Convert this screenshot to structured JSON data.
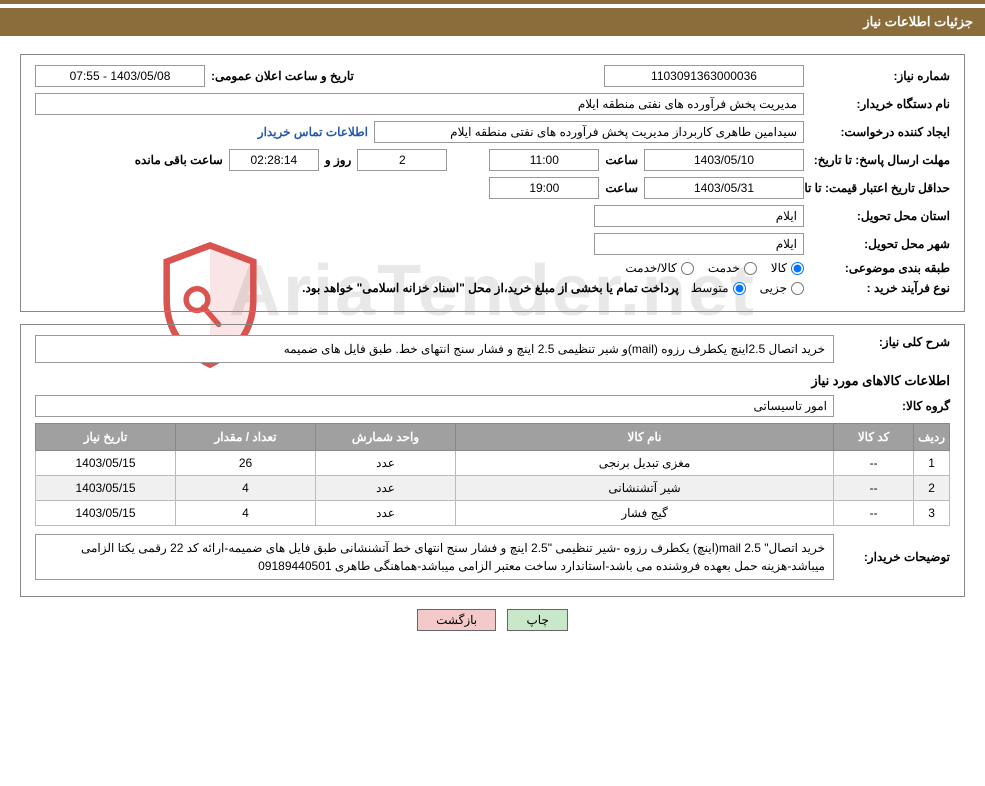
{
  "header": {
    "title": "جزئیات اطلاعات نیاز"
  },
  "fields": {
    "need_no_label": "شماره نیاز:",
    "need_no": "1103091363000036",
    "announce_label": "تاریخ و ساعت اعلان عمومی:",
    "announce_val": "1403/05/08 - 07:55",
    "buyer_org_label": "نام دستگاه خریدار:",
    "buyer_org": "مدیریت پخش فرآورده های نفتی منطقه ایلام",
    "requester_label": "ایجاد کننده درخواست:",
    "requester": "سیدامین طاهری کاربرداز مدیریت پخش فرآورده های نفتی منطقه ایلام",
    "contact_link": "اطلاعات تماس خریدار",
    "deadline_label": "مهلت ارسال پاسخ:",
    "to_date_label": "تا تاریخ:",
    "deadline_date": "1403/05/10",
    "time_label": "ساعت",
    "deadline_time": "11:00",
    "days_remaining": "2",
    "days_label": "روز و",
    "countdown": "02:28:14",
    "remaining_label": "ساعت باقی مانده",
    "min_valid_label": "حداقل تاریخ اعتبار قیمت:",
    "min_valid_date": "1403/05/31",
    "min_valid_time": "19:00",
    "province_label": "استان محل تحویل:",
    "province": "ایلام",
    "city_label": "شهر محل تحویل:",
    "city": "ایلام",
    "category_label": "طبقه بندی موضوعی:",
    "cat_goods": "کالا",
    "cat_service": "خدمت",
    "cat_goods_service": "کالا/خدمت",
    "process_label": "نوع فرآیند خرید :",
    "proc_minor": "جزیی",
    "proc_medium": "متوسط",
    "process_note": "پرداخت تمام یا بخشی از مبلغ خرید،از محل \"اسناد خزانه اسلامی\" خواهد بود."
  },
  "need": {
    "overview_label": "شرح کلی نیاز:",
    "overview": "خرید اتصال 2.5اینچ یکطرف رزوه (mail)و شیر تنظیمی 2.5 اینچ و فشار سنج انتهای خط. طبق فایل های ضمیمه",
    "items_title": "اطلاعات کالاهای مورد نیاز",
    "group_label": "گروه کالا:",
    "group": "امور تاسیساتی"
  },
  "table": {
    "headers": {
      "row": "ردیف",
      "code": "کد کالا",
      "name": "نام کالا",
      "unit": "واحد شمارش",
      "qty": "تعداد / مقدار",
      "date": "تاریخ نیاز"
    },
    "rows": [
      {
        "row": "1",
        "code": "--",
        "name": "مغزی تبدیل برنجی",
        "unit": "عدد",
        "qty": "26",
        "date": "1403/05/15"
      },
      {
        "row": "2",
        "code": "--",
        "name": "شیر آتشنشانی",
        "unit": "عدد",
        "qty": "4",
        "date": "1403/05/15"
      },
      {
        "row": "3",
        "code": "--",
        "name": "گیج فشار",
        "unit": "عدد",
        "qty": "4",
        "date": "1403/05/15"
      }
    ]
  },
  "buyer_note": {
    "label": "توضیحات خریدار:",
    "text": "خرید اتصال\" mail 2.5(اینچ) یکطرف رزوه -شیر تنظیمی \"2.5 اینچ و فشار سنج انتهای خط آتشنشانی طبق فایل های ضمیمه-ارائه کد 22 رقمی یکتا الزامی میباشد-هزینه حمل بعهده فروشنده  می باشد-استاندارد ساخت معتبر الزامی میباشد-هماهنگی طاهری 09189440501"
  },
  "buttons": {
    "print": "چاپ",
    "back": "بازگشت"
  },
  "watermark": "AriaTender.net",
  "colors": {
    "brown": "#8a6d3b",
    "th_bg": "#a0a0a0",
    "link": "#265aa6",
    "btn_print": "#c9e8c9",
    "btn_back": "#f4c9c9",
    "shield": "#d9534f"
  }
}
